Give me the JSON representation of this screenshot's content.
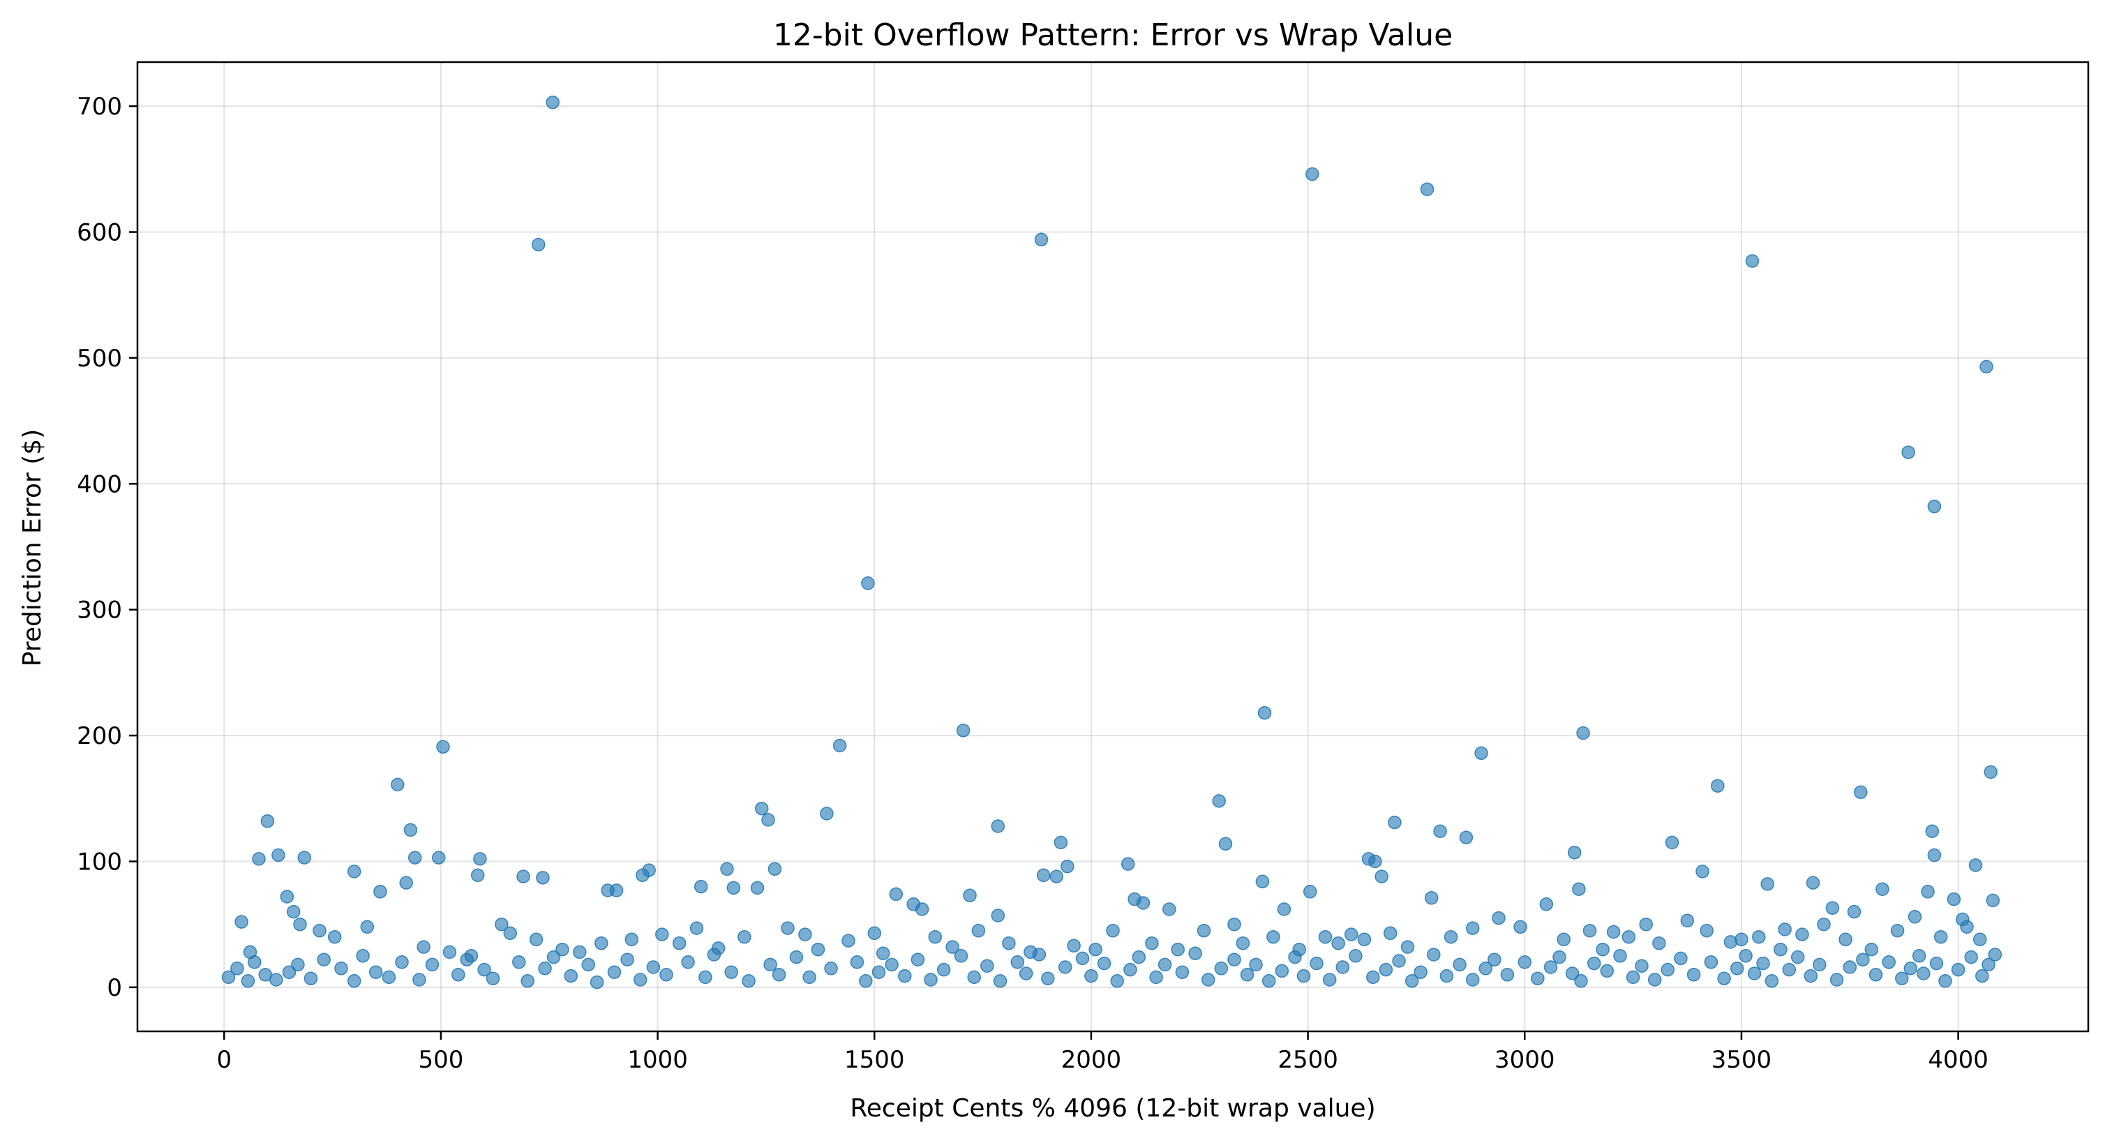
{
  "chart_data": {
    "type": "scatter",
    "title": "12-bit Overflow Pattern: Error vs Wrap Value",
    "xlabel": "Receipt Cents % 4096 (12-bit wrap value)",
    "ylabel": "Prediction Error ($)",
    "xlim": [
      -200,
      4300
    ],
    "ylim": [
      -35,
      735
    ],
    "xticks": [
      0,
      500,
      1000,
      1500,
      2000,
      2500,
      3000,
      3500,
      4000
    ],
    "yticks": [
      0,
      100,
      200,
      300,
      400,
      500,
      600,
      700
    ],
    "grid": true,
    "marker_color": "#1f77b4",
    "marker_alpha": 0.6,
    "points": [
      [
        758,
        703
      ],
      [
        725,
        590
      ],
      [
        2510,
        646
      ],
      [
        2775,
        634
      ],
      [
        1885,
        594
      ],
      [
        3525,
        577
      ],
      [
        4065,
        493
      ],
      [
        3885,
        425
      ],
      [
        3945,
        382
      ],
      [
        1485,
        321
      ],
      [
        2400,
        218
      ],
      [
        1705,
        204
      ],
      [
        3135,
        202
      ],
      [
        1420,
        192
      ],
      [
        505,
        191
      ],
      [
        2900,
        186
      ],
      [
        4075,
        171
      ],
      [
        400,
        161
      ],
      [
        3445,
        160
      ],
      [
        3775,
        155
      ],
      [
        2295,
        148
      ],
      [
        1240,
        142
      ],
      [
        1390,
        138
      ],
      [
        1255,
        133
      ],
      [
        2700,
        131
      ],
      [
        100,
        132
      ],
      [
        1785,
        128
      ],
      [
        2805,
        124
      ],
      [
        430,
        125
      ],
      [
        3940,
        124
      ],
      [
        2865,
        119
      ],
      [
        3340,
        115
      ],
      [
        1930,
        115
      ],
      [
        2310,
        114
      ],
      [
        3115,
        107
      ],
      [
        3945,
        105
      ],
      [
        125,
        105
      ],
      [
        80,
        102
      ],
      [
        185,
        103
      ],
      [
        440,
        103
      ],
      [
        495,
        103
      ],
      [
        590,
        102
      ],
      [
        2640,
        102
      ],
      [
        2655,
        100
      ],
      [
        2085,
        98
      ],
      [
        1945,
        96
      ],
      [
        4040,
        97
      ],
      [
        980,
        93
      ],
      [
        1160,
        94
      ],
      [
        1270,
        94
      ],
      [
        3410,
        92
      ],
      [
        300,
        92
      ],
      [
        585,
        89
      ],
      [
        690,
        88
      ],
      [
        735,
        87
      ],
      [
        1890,
        89
      ],
      [
        1920,
        88
      ],
      [
        2670,
        88
      ],
      [
        965,
        89
      ],
      [
        2395,
        84
      ],
      [
        420,
        83
      ],
      [
        3665,
        83
      ],
      [
        3560,
        82
      ],
      [
        3125,
        78
      ],
      [
        3825,
        78
      ],
      [
        3930,
        76
      ],
      [
        1100,
        80
      ],
      [
        1175,
        79
      ],
      [
        1230,
        79
      ],
      [
        885,
        77
      ],
      [
        905,
        77
      ],
      [
        360,
        76
      ],
      [
        145,
        72
      ],
      [
        1720,
        73
      ],
      [
        1550,
        74
      ],
      [
        2505,
        76
      ],
      [
        2785,
        71
      ],
      [
        2100,
        70
      ],
      [
        3990,
        70
      ],
      [
        3760,
        60
      ],
      [
        3710,
        63
      ],
      [
        1590,
        66
      ],
      [
        1610,
        62
      ],
      [
        1785,
        57
      ],
      [
        2120,
        67
      ],
      [
        2180,
        62
      ],
      [
        2330,
        50
      ],
      [
        2445,
        62
      ],
      [
        2600,
        42
      ],
      [
        3050,
        66
      ],
      [
        3205,
        44
      ],
      [
        3375,
        53
      ],
      [
        3475,
        36
      ],
      [
        3600,
        46
      ],
      [
        3900,
        56
      ],
      [
        4010,
        54
      ],
      [
        4080,
        69
      ],
      [
        4085,
        26
      ],
      [
        40,
        52
      ],
      [
        60,
        28
      ],
      [
        160,
        60
      ],
      [
        175,
        50
      ],
      [
        220,
        45
      ],
      [
        255,
        40
      ],
      [
        330,
        48
      ],
      [
        460,
        32
      ],
      [
        520,
        28
      ],
      [
        560,
        22
      ],
      [
        640,
        50
      ],
      [
        660,
        43
      ],
      [
        720,
        38
      ],
      [
        780,
        30
      ],
      [
        820,
        28
      ],
      [
        870,
        35
      ],
      [
        940,
        38
      ],
      [
        1010,
        42
      ],
      [
        1050,
        35
      ],
      [
        1090,
        47
      ],
      [
        1140,
        31
      ],
      [
        1200,
        40
      ],
      [
        1300,
        47
      ],
      [
        1340,
        42
      ],
      [
        1370,
        30
      ],
      [
        1440,
        37
      ],
      [
        1500,
        43
      ],
      [
        1520,
        27
      ],
      [
        1640,
        40
      ],
      [
        1680,
        32
      ],
      [
        1740,
        45
      ],
      [
        1810,
        35
      ],
      [
        1860,
        28
      ],
      [
        1960,
        33
      ],
      [
        2010,
        30
      ],
      [
        2050,
        45
      ],
      [
        2140,
        35
      ],
      [
        2200,
        30
      ],
      [
        2260,
        45
      ],
      [
        2350,
        35
      ],
      [
        2420,
        40
      ],
      [
        2480,
        30
      ],
      [
        2540,
        40
      ],
      [
        2570,
        35
      ],
      [
        2630,
        38
      ],
      [
        2690,
        43
      ],
      [
        2730,
        32
      ],
      [
        2830,
        40
      ],
      [
        2880,
        47
      ],
      [
        2940,
        55
      ],
      [
        2990,
        48
      ],
      [
        3090,
        38
      ],
      [
        3150,
        45
      ],
      [
        3180,
        30
      ],
      [
        3240,
        40
      ],
      [
        3280,
        50
      ],
      [
        3310,
        35
      ],
      [
        3420,
        45
      ],
      [
        3500,
        38
      ],
      [
        3540,
        40
      ],
      [
        3590,
        30
      ],
      [
        3640,
        42
      ],
      [
        3690,
        50
      ],
      [
        3740,
        38
      ],
      [
        3800,
        30
      ],
      [
        3860,
        45
      ],
      [
        3960,
        40
      ],
      [
        4020,
        48
      ],
      [
        4050,
        38
      ],
      [
        10,
        8
      ],
      [
        30,
        15
      ],
      [
        55,
        5
      ],
      [
        70,
        20
      ],
      [
        95,
        10
      ],
      [
        120,
        6
      ],
      [
        150,
        12
      ],
      [
        170,
        18
      ],
      [
        200,
        7
      ],
      [
        230,
        22
      ],
      [
        270,
        15
      ],
      [
        300,
        5
      ],
      [
        320,
        25
      ],
      [
        350,
        12
      ],
      [
        380,
        8
      ],
      [
        410,
        20
      ],
      [
        450,
        6
      ],
      [
        480,
        18
      ],
      [
        540,
        10
      ],
      [
        570,
        25
      ],
      [
        600,
        14
      ],
      [
        620,
        7
      ],
      [
        680,
        20
      ],
      [
        700,
        5
      ],
      [
        740,
        15
      ],
      [
        760,
        24
      ],
      [
        800,
        9
      ],
      [
        840,
        18
      ],
      [
        860,
        4
      ],
      [
        900,
        12
      ],
      [
        930,
        22
      ],
      [
        960,
        6
      ],
      [
        990,
        16
      ],
      [
        1020,
        10
      ],
      [
        1070,
        20
      ],
      [
        1110,
        8
      ],
      [
        1130,
        26
      ],
      [
        1170,
        12
      ],
      [
        1210,
        5
      ],
      [
        1260,
        18
      ],
      [
        1280,
        10
      ],
      [
        1320,
        24
      ],
      [
        1350,
        8
      ],
      [
        1400,
        15
      ],
      [
        1460,
        20
      ],
      [
        1480,
        5
      ],
      [
        1510,
        12
      ],
      [
        1540,
        18
      ],
      [
        1570,
        9
      ],
      [
        1600,
        22
      ],
      [
        1630,
        6
      ],
      [
        1660,
        14
      ],
      [
        1700,
        25
      ],
      [
        1730,
        8
      ],
      [
        1760,
        17
      ],
      [
        1790,
        5
      ],
      [
        1830,
        20
      ],
      [
        1850,
        11
      ],
      [
        1880,
        26
      ],
      [
        1900,
        7
      ],
      [
        1940,
        16
      ],
      [
        1980,
        23
      ],
      [
        2000,
        9
      ],
      [
        2030,
        19
      ],
      [
        2060,
        5
      ],
      [
        2090,
        14
      ],
      [
        2110,
        24
      ],
      [
        2150,
        8
      ],
      [
        2170,
        18
      ],
      [
        2210,
        12
      ],
      [
        2240,
        27
      ],
      [
        2270,
        6
      ],
      [
        2300,
        15
      ],
      [
        2330,
        22
      ],
      [
        2360,
        10
      ],
      [
        2380,
        18
      ],
      [
        2410,
        5
      ],
      [
        2440,
        13
      ],
      [
        2470,
        24
      ],
      [
        2490,
        9
      ],
      [
        2520,
        19
      ],
      [
        2550,
        6
      ],
      [
        2580,
        16
      ],
      [
        2610,
        25
      ],
      [
        2650,
        8
      ],
      [
        2680,
        14
      ],
      [
        2710,
        21
      ],
      [
        2740,
        5
      ],
      [
        2760,
        12
      ],
      [
        2790,
        26
      ],
      [
        2820,
        9
      ],
      [
        2850,
        18
      ],
      [
        2880,
        6
      ],
      [
        2910,
        15
      ],
      [
        2930,
        22
      ],
      [
        2960,
        10
      ],
      [
        3000,
        20
      ],
      [
        3030,
        7
      ],
      [
        3060,
        16
      ],
      [
        3080,
        24
      ],
      [
        3110,
        11
      ],
      [
        3130,
        5
      ],
      [
        3160,
        19
      ],
      [
        3190,
        13
      ],
      [
        3220,
        25
      ],
      [
        3250,
        8
      ],
      [
        3270,
        17
      ],
      [
        3300,
        6
      ],
      [
        3330,
        14
      ],
      [
        3360,
        23
      ],
      [
        3390,
        10
      ],
      [
        3430,
        20
      ],
      [
        3460,
        7
      ],
      [
        3490,
        15
      ],
      [
        3510,
        25
      ],
      [
        3530,
        11
      ],
      [
        3550,
        19
      ],
      [
        3570,
        5
      ],
      [
        3610,
        14
      ],
      [
        3630,
        24
      ],
      [
        3660,
        9
      ],
      [
        3680,
        18
      ],
      [
        3720,
        6
      ],
      [
        3750,
        16
      ],
      [
        3780,
        22
      ],
      [
        3810,
        10
      ],
      [
        3840,
        20
      ],
      [
        3870,
        7
      ],
      [
        3890,
        15
      ],
      [
        3910,
        25
      ],
      [
        3920,
        11
      ],
      [
        3950,
        19
      ],
      [
        3970,
        5
      ],
      [
        4000,
        14
      ],
      [
        4030,
        24
      ],
      [
        4055,
        9
      ],
      [
        4070,
        18
      ]
    ]
  }
}
